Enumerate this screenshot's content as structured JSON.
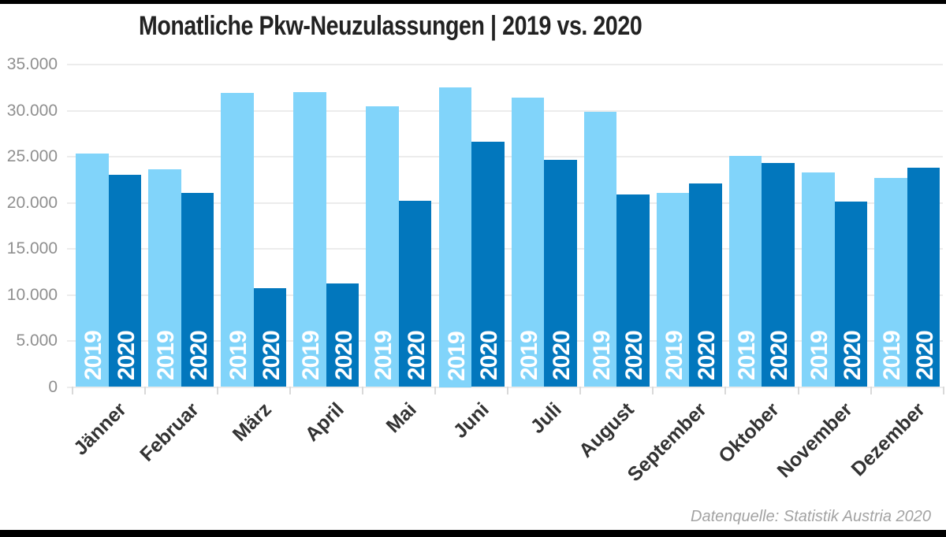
{
  "title": "Monatliche Pkw-Neuzulassungen | 2019 vs. 2020",
  "source_note": "Datenquelle: Statistik Austria 2020",
  "chart_data": {
    "type": "bar",
    "title": "Monatliche Pkw-Neuzulassungen | 2019 vs. 2020",
    "categories": [
      "Jänner",
      "Februar",
      "März",
      "April",
      "Mai",
      "Juni",
      "Juli",
      "August",
      "September",
      "Oktober",
      "November",
      "Dezember"
    ],
    "series": [
      {
        "name": "2019",
        "color": "#81D4FA",
        "values": [
          25300,
          23600,
          31900,
          32000,
          30500,
          32500,
          31400,
          29900,
          21100,
          25100,
          23300,
          22700
        ]
      },
      {
        "name": "2020",
        "color": "#0277BD",
        "values": [
          23000,
          21100,
          10700,
          11200,
          20200,
          26600,
          24700,
          20900,
          22100,
          24300,
          20100,
          23800
        ]
      }
    ],
    "ylim": [
      0,
      35000
    ],
    "ytick_interval": 5000,
    "yticks": [
      {
        "value": 35000,
        "label": "35.000"
      },
      {
        "value": 30000,
        "label": "30.000"
      },
      {
        "value": 25000,
        "label": "25.000"
      },
      {
        "value": 20000,
        "label": "20.000"
      },
      {
        "value": 15000,
        "label": "15.000"
      },
      {
        "value": 10000,
        "label": "10.000"
      },
      {
        "value": 5000,
        "label": "5.000"
      },
      {
        "value": 0,
        "label": "0"
      }
    ],
    "grid": "horizontal gridlines on",
    "legend": "none — series year labels printed vertically inside each bar",
    "bar_label_color": "#ffffff",
    "xlabel": "",
    "ylabel": "",
    "source": "Datenquelle: Statistik Austria 2020"
  },
  "colors": {
    "bar_2019": "#81D4FA",
    "bar_2020": "#0277BD",
    "gridline": "#ececec",
    "axis_text": "#8f8f8f",
    "month_text": "#333333",
    "title_text": "#222222",
    "frame": "#000000"
  }
}
